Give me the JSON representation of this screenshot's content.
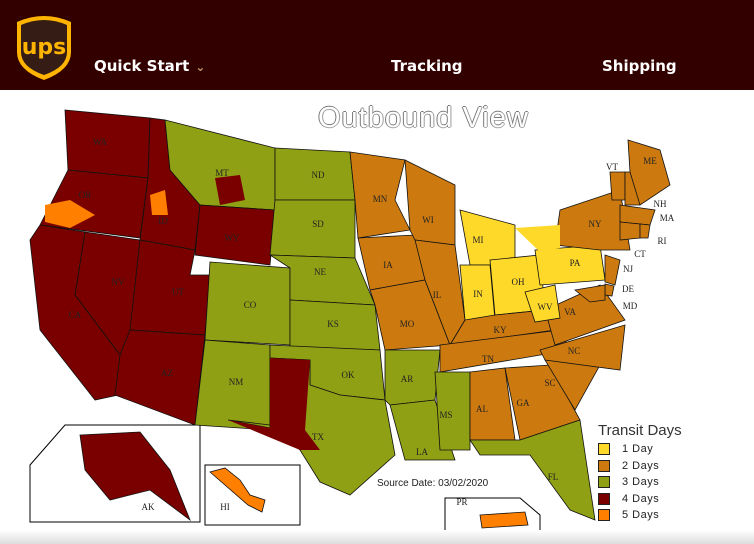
{
  "header": {
    "logo_text": "ups",
    "nav": [
      {
        "label": "Quick Start",
        "has_dropdown": true
      },
      {
        "label": "Tracking"
      },
      {
        "label": "Shipping"
      }
    ],
    "background": "#330000"
  },
  "title": "Outbound View",
  "source_date": "Source Date: 03/02/2020",
  "legend": {
    "title": "Transit Days",
    "items": [
      {
        "label": "1 Day",
        "days": 1,
        "color": "#ffd92a"
      },
      {
        "label": "2 Days",
        "days": 2,
        "color": "#cc7a10"
      },
      {
        "label": "3 Days",
        "days": 3,
        "color": "#8fa015"
      },
      {
        "label": "4 Days",
        "days": 4,
        "color": "#7a0000"
      },
      {
        "label": "5 Days",
        "days": 5,
        "color": "#ff7f00"
      }
    ]
  },
  "states": [
    {
      "id": "WA",
      "days": 4
    },
    {
      "id": "OR",
      "days": 4
    },
    {
      "id": "ID",
      "days": 4
    },
    {
      "id": "MT",
      "days": 3
    },
    {
      "id": "WY",
      "days": 4
    },
    {
      "id": "NV",
      "days": 4
    },
    {
      "id": "CA",
      "days": 4
    },
    {
      "id": "UT",
      "days": 4
    },
    {
      "id": "CO",
      "days": 3
    },
    {
      "id": "AZ",
      "days": 4
    },
    {
      "id": "NM",
      "days": 3
    },
    {
      "id": "ND",
      "days": 3
    },
    {
      "id": "SD",
      "days": 3
    },
    {
      "id": "NE",
      "days": 3
    },
    {
      "id": "KS",
      "days": 3
    },
    {
      "id": "OK",
      "days": 3
    },
    {
      "id": "TX",
      "days": 3
    },
    {
      "id": "MN",
      "days": 2
    },
    {
      "id": "IA",
      "days": 2
    },
    {
      "id": "MO",
      "days": 2
    },
    {
      "id": "AR",
      "days": 3
    },
    {
      "id": "LA",
      "days": 3
    },
    {
      "id": "WI",
      "days": 2
    },
    {
      "id": "IL",
      "days": 2
    },
    {
      "id": "MI",
      "days": 1
    },
    {
      "id": "IN",
      "days": 1
    },
    {
      "id": "OH",
      "days": 1
    },
    {
      "id": "KY",
      "days": 2
    },
    {
      "id": "TN",
      "days": 2
    },
    {
      "id": "MS",
      "days": 3
    },
    {
      "id": "AL",
      "days": 2
    },
    {
      "id": "GA",
      "days": 2
    },
    {
      "id": "FL",
      "days": 3
    },
    {
      "id": "SC",
      "days": 2
    },
    {
      "id": "NC",
      "days": 2
    },
    {
      "id": "VA",
      "days": 2
    },
    {
      "id": "WV",
      "days": 1
    },
    {
      "id": "PA",
      "days": 1
    },
    {
      "id": "NY",
      "days": 2
    },
    {
      "id": "VT",
      "days": 2
    },
    {
      "id": "NH",
      "days": 2
    },
    {
      "id": "ME",
      "days": 2
    },
    {
      "id": "MA",
      "days": 2
    },
    {
      "id": "CT",
      "days": 2
    },
    {
      "id": "RI",
      "days": 2
    },
    {
      "id": "NJ",
      "days": 2
    },
    {
      "id": "DE",
      "days": 2
    },
    {
      "id": "MD",
      "days": 2
    },
    {
      "id": "AK",
      "days": 4
    },
    {
      "id": "HI",
      "days": 5
    },
    {
      "id": "PR",
      "days": 5
    }
  ]
}
